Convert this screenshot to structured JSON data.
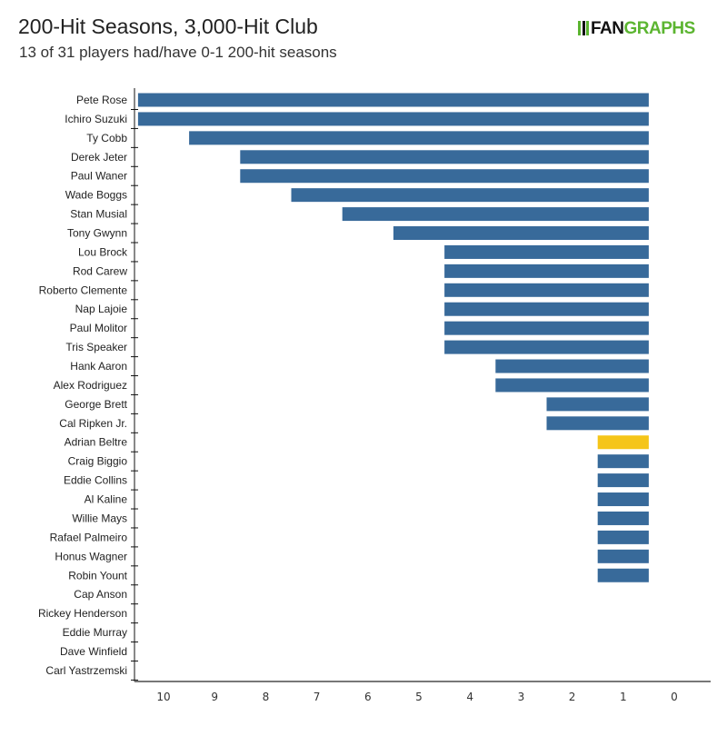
{
  "header": {
    "title": "200-Hit Seasons, 3,000-Hit Club",
    "subtitle": "13 of 31 players had/have 0-1 200-hit seasons",
    "logo": "FANGRAPHS"
  },
  "chart_data": {
    "type": "bar",
    "orientation": "horizontal",
    "x_reversed": true,
    "xlim": [
      0,
      10
    ],
    "x_ticks": [
      10,
      9,
      8,
      7,
      6,
      5,
      4,
      3,
      2,
      1,
      0
    ],
    "grid": false,
    "colors": {
      "default": "#386a9a",
      "highlight": "#f5c519"
    },
    "highlight": "Adrian Beltre",
    "categories": [
      "Pete Rose",
      "Ichiro Suzuki",
      "Ty Cobb",
      "Derek Jeter",
      "Paul Waner",
      "Wade Boggs",
      "Stan Musial",
      "Tony Gwynn",
      "Lou Brock",
      "Rod Carew",
      "Roberto Clemente",
      "Nap Lajoie",
      "Paul Molitor",
      "Tris Speaker",
      "Hank Aaron",
      "Alex Rodriguez",
      "George Brett",
      "Cal Ripken Jr.",
      "Adrian Beltre",
      "Craig Biggio",
      "Eddie Collins",
      "Al Kaline",
      "Willie Mays",
      "Rafael Palmeiro",
      "Honus Wagner",
      "Robin Yount",
      "Cap Anson",
      "Rickey Henderson",
      "Eddie Murray",
      "Dave Winfield",
      "Carl Yastrzemski"
    ],
    "values": [
      10,
      10,
      9,
      8,
      8,
      7,
      6,
      5,
      4,
      4,
      4,
      4,
      4,
      4,
      3,
      3,
      2,
      2,
      1,
      1,
      1,
      1,
      1,
      1,
      1,
      1,
      0,
      0,
      0,
      0,
      0
    ]
  }
}
